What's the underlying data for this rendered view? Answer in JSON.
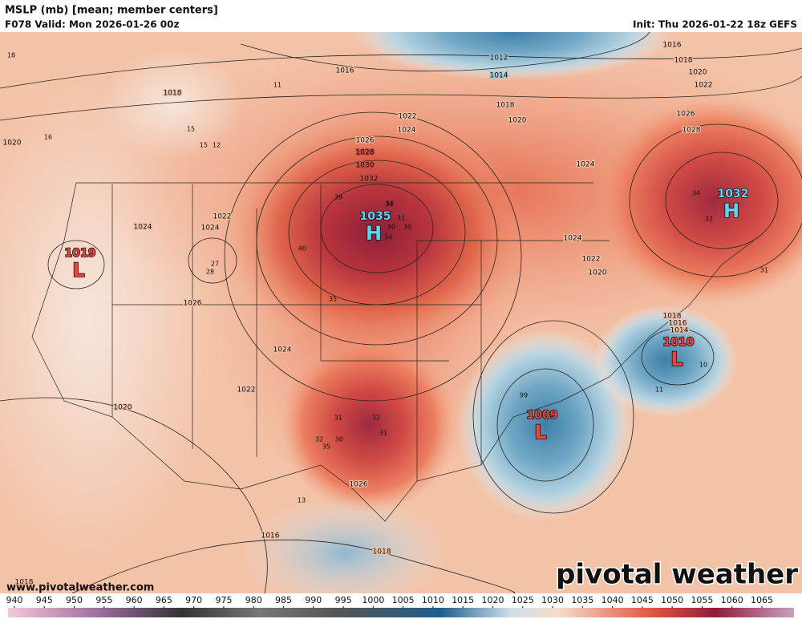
{
  "header": {
    "title": "MSLP (mb) [mean; member centers]",
    "valid": "F078 Valid: Mon 2026-01-26 00z",
    "init": "Init: Thu 2026-01-22 18z GEFS"
  },
  "centers": [
    {
      "value": 1035,
      "label": "H"
    },
    {
      "value": 1032,
      "label": "H"
    },
    {
      "value": 1019,
      "label": "L"
    },
    {
      "value": 1010,
      "label": "L"
    },
    {
      "value": 1009,
      "label": "L"
    }
  ],
  "isobar_labels": [
    1012,
    1014,
    1016,
    1016,
    1018,
    1020,
    1022,
    1018,
    1020,
    1022,
    1024,
    1026,
    1028,
    1024,
    1026,
    1028,
    1030,
    1032,
    1018,
    1020,
    1022,
    1024,
    1024,
    1026,
    1024,
    1022,
    1020,
    1026,
    1018,
    1016,
    1018,
    1024,
    1022,
    1020,
    1018,
    1016,
    1014
  ],
  "member_centers": [
    39,
    34,
    31,
    30,
    40,
    35,
    27,
    28,
    31,
    32,
    30,
    32,
    31,
    35,
    30,
    34,
    33,
    34,
    32,
    31,
    11,
    13,
    15,
    15,
    12,
    16,
    18,
    11,
    99,
    10
  ],
  "colorbar": {
    "ticks": [
      940,
      945,
      950,
      955,
      960,
      965,
      970,
      975,
      980,
      985,
      990,
      995,
      1000,
      1005,
      1010,
      1015,
      1020,
      1025,
      1030,
      1035,
      1040,
      1045,
      1050,
      1055,
      1060,
      1065
    ]
  },
  "footer": {
    "url": "www.pivotalweather.com",
    "logo": "pivotal weather"
  }
}
